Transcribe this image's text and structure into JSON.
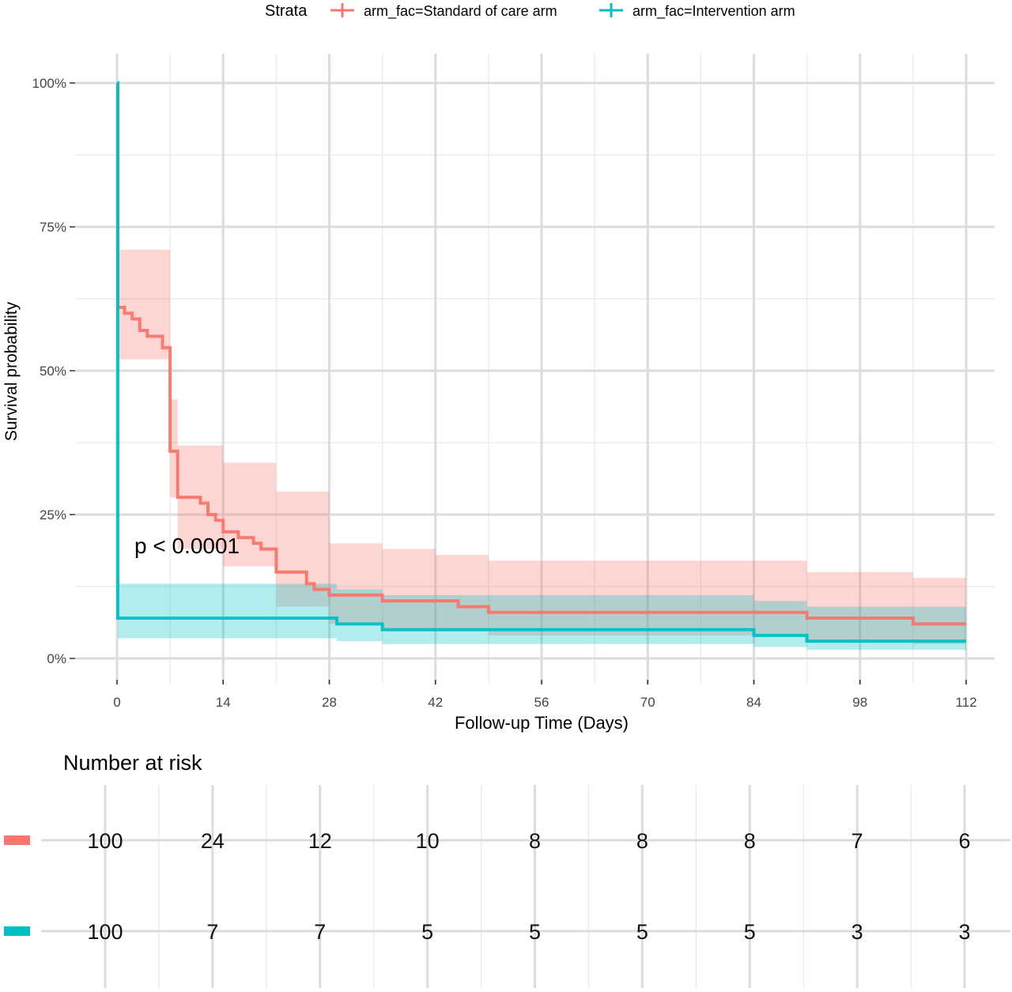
{
  "legend": {
    "title": "Strata",
    "position": "top",
    "items": [
      {
        "label": "arm_fac=Standard of care arm",
        "color": "#F8766D"
      },
      {
        "label": "arm_fac=Intervention arm",
        "color": "#00BFC4"
      }
    ]
  },
  "chart_data": {
    "type": "line",
    "subtype": "kaplan-meier",
    "title": "",
    "xlabel": "Follow-up Time (Days)",
    "ylabel": "Survival probability",
    "xlim": [
      0,
      112
    ],
    "ylim": [
      0,
      1
    ],
    "x_ticks": [
      0,
      14,
      28,
      42,
      56,
      70,
      84,
      98,
      112
    ],
    "y_ticks": [
      0,
      0.25,
      0.5,
      0.75,
      1.0
    ],
    "y_tick_labels": [
      "0%",
      "25%",
      "50%",
      "75%",
      "100%"
    ],
    "grid": true,
    "annotation": "p < 0.0001",
    "series": [
      {
        "name": "arm_fac=Standard of care arm",
        "color": "#F8766D",
        "steps": [
          [
            0,
            1.0
          ],
          [
            0.1,
            0.61
          ],
          [
            1,
            0.6
          ],
          [
            2,
            0.59
          ],
          [
            3,
            0.57
          ],
          [
            4,
            0.56
          ],
          [
            6,
            0.54
          ],
          [
            7,
            0.36
          ],
          [
            8,
            0.28
          ],
          [
            11,
            0.27
          ],
          [
            12,
            0.25
          ],
          [
            13,
            0.24
          ],
          [
            14,
            0.22
          ],
          [
            16,
            0.21
          ],
          [
            18,
            0.2
          ],
          [
            19,
            0.19
          ],
          [
            21,
            0.15
          ],
          [
            25,
            0.13
          ],
          [
            26,
            0.12
          ],
          [
            28,
            0.11
          ],
          [
            35,
            0.1
          ],
          [
            45,
            0.09
          ],
          [
            49,
            0.08
          ],
          [
            91,
            0.07
          ],
          [
            105,
            0.06
          ],
          [
            112,
            0.06
          ]
        ],
        "ci_upper": [
          [
            0,
            1.0
          ],
          [
            0.1,
            0.71
          ],
          [
            7,
            0.45
          ],
          [
            8,
            0.37
          ],
          [
            14,
            0.34
          ],
          [
            21,
            0.29
          ],
          [
            28,
            0.2
          ],
          [
            35,
            0.19
          ],
          [
            42,
            0.18
          ],
          [
            49,
            0.17
          ],
          [
            91,
            0.15
          ],
          [
            105,
            0.14
          ],
          [
            112,
            0.13
          ]
        ],
        "ci_lower": [
          [
            0,
            1.0
          ],
          [
            0.1,
            0.52
          ],
          [
            7,
            0.28
          ],
          [
            8,
            0.19
          ],
          [
            14,
            0.16
          ],
          [
            21,
            0.09
          ],
          [
            28,
            0.06
          ],
          [
            35,
            0.05
          ],
          [
            49,
            0.04
          ],
          [
            91,
            0.03
          ],
          [
            105,
            0.025
          ],
          [
            112,
            0.025
          ]
        ],
        "censor_ticks": []
      },
      {
        "name": "arm_fac=Intervention arm",
        "color": "#00BFC4",
        "steps": [
          [
            0,
            1.0
          ],
          [
            0.1,
            0.07
          ],
          [
            29,
            0.06
          ],
          [
            35,
            0.05
          ],
          [
            84,
            0.04
          ],
          [
            91,
            0.03
          ],
          [
            112,
            0.03
          ]
        ],
        "ci_upper": [
          [
            0,
            1.0
          ],
          [
            0.1,
            0.13
          ],
          [
            29,
            0.12
          ],
          [
            35,
            0.11
          ],
          [
            84,
            0.1
          ],
          [
            91,
            0.09
          ],
          [
            112,
            0.09
          ]
        ],
        "ci_lower": [
          [
            0,
            1.0
          ],
          [
            0.1,
            0.035
          ],
          [
            29,
            0.03
          ],
          [
            35,
            0.025
          ],
          [
            84,
            0.02
          ],
          [
            91,
            0.015
          ],
          [
            112,
            0.015
          ]
        ],
        "censor_ticks": []
      }
    ]
  },
  "risk_table": {
    "title": "Number at risk",
    "times": [
      0,
      14,
      28,
      42,
      56,
      70,
      84,
      98,
      112
    ],
    "rows": [
      {
        "color": "#F8766D",
        "values": [
          "100",
          "24",
          "12",
          "10",
          "8",
          "8",
          "8",
          "7",
          "6"
        ]
      },
      {
        "color": "#00BFC4",
        "values": [
          "100",
          "7",
          "7",
          "5",
          "5",
          "5",
          "5",
          "3",
          "3"
        ]
      }
    ]
  }
}
